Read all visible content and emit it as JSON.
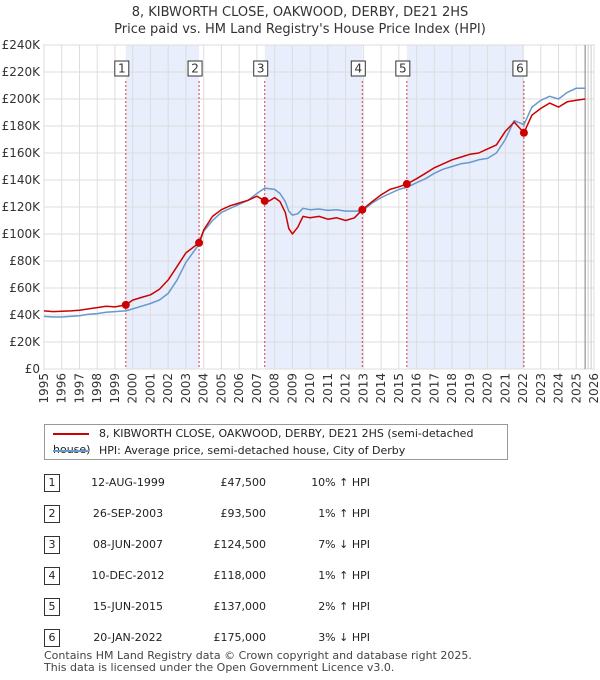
{
  "title": "8, KIBWORTH CLOSE, OAKWOOD, DERBY, DE21 2HS",
  "subtitle": "Price paid vs. HM Land Registry's House Price Index (HPI)",
  "colors": {
    "property_line": "#cc0000",
    "hpi_line": "#6699cc",
    "shade": "#e8eefb",
    "grid": "#dddddd",
    "marker_line": "#d04040"
  },
  "legend": {
    "property_label": "8, KIBWORTH CLOSE, OAKWOOD, DERBY, DE21 2HS (semi-detached house)",
    "hpi_label": "HPI: Average price, semi-detached house, City of Derby"
  },
  "transactions": [
    {
      "num": "1",
      "date": "12-AUG-1999",
      "price": "£47,500",
      "hpi": "10% ↑ HPI"
    },
    {
      "num": "2",
      "date": "26-SEP-2003",
      "price": "£93,500",
      "hpi": "1% ↑ HPI"
    },
    {
      "num": "3",
      "date": "08-JUN-2007",
      "price": "£124,500",
      "hpi": "7% ↓ HPI"
    },
    {
      "num": "4",
      "date": "10-DEC-2012",
      "price": "£118,000",
      "hpi": "1% ↑ HPI"
    },
    {
      "num": "5",
      "date": "15-JUN-2015",
      "price": "£137,000",
      "hpi": "2% ↑ HPI"
    },
    {
      "num": "6",
      "date": "20-JAN-2022",
      "price": "£175,000",
      "hpi": "3% ↓ HPI"
    }
  ],
  "footer": {
    "line1": "Contains HM Land Registry data © Crown copyright and database right 2025.",
    "line2": "This data is licensed under the Open Government Licence v3.0."
  },
  "chart_data": {
    "type": "line",
    "title": "8, KIBWORTH CLOSE, OAKWOOD, DERBY, DE21 2HS",
    "subtitle": "Price paid vs. HM Land Registry's House Price Index (HPI)",
    "xlabel": "",
    "ylabel": "",
    "xlim": [
      1995,
      2026
    ],
    "ylim": [
      0,
      240000
    ],
    "x_ticks": [
      1995,
      1996,
      1997,
      1998,
      1999,
      2000,
      2001,
      2002,
      2003,
      2004,
      2005,
      2006,
      2007,
      2008,
      2009,
      2010,
      2011,
      2012,
      2013,
      2014,
      2015,
      2016,
      2017,
      2018,
      2019,
      2020,
      2021,
      2022,
      2023,
      2024,
      2025,
      2026
    ],
    "y_ticks": [
      0,
      20000,
      40000,
      60000,
      80000,
      100000,
      120000,
      140000,
      160000,
      180000,
      200000,
      220000,
      240000
    ],
    "y_tick_labels": [
      "£0",
      "£20K",
      "£40K",
      "£60K",
      "£80K",
      "£100K",
      "£120K",
      "£140K",
      "£160K",
      "£180K",
      "£200K",
      "£220K",
      "£240K"
    ],
    "grid": true,
    "shaded_periods": [
      [
        1999.61,
        2003.74
      ],
      [
        2007.44,
        2012.94
      ],
      [
        2015.45,
        2022.05
      ]
    ],
    "sales": [
      {
        "label": "1",
        "x": 1999.61,
        "y": 47500
      },
      {
        "label": "2",
        "x": 2003.74,
        "y": 93500
      },
      {
        "label": "3",
        "x": 2007.44,
        "y": 124500
      },
      {
        "label": "4",
        "x": 2012.94,
        "y": 118000
      },
      {
        "label": "5",
        "x": 2015.45,
        "y": 137000
      },
      {
        "label": "6",
        "x": 2022.05,
        "y": 175000
      }
    ],
    "series": [
      {
        "name": "8, KIBWORTH CLOSE, OAKWOOD, DERBY, DE21 2HS (semi-detached house)",
        "color": "#cc0000",
        "x": [
          1995.0,
          1995.5,
          1996.0,
          1996.5,
          1997.0,
          1997.5,
          1998.0,
          1998.5,
          1999.0,
          1999.61,
          2000.0,
          2000.5,
          2001.0,
          2001.5,
          2002.0,
          2002.5,
          2003.0,
          2003.74,
          2004.0,
          2004.5,
          2005.0,
          2005.5,
          2006.0,
          2006.5,
          2007.0,
          2007.44,
          2007.7,
          2008.0,
          2008.3,
          2008.6,
          2008.8,
          2009.0,
          2009.3,
          2009.6,
          2010.0,
          2010.5,
          2011.0,
          2011.5,
          2012.0,
          2012.5,
          2012.94,
          2013.5,
          2014.0,
          2014.5,
          2015.0,
          2015.45,
          2016.0,
          2016.5,
          2017.0,
          2017.5,
          2018.0,
          2018.5,
          2019.0,
          2019.5,
          2020.0,
          2020.5,
          2021.0,
          2021.5,
          2022.05,
          2022.5,
          2023.0,
          2023.5,
          2024.0,
          2024.5,
          2025.0,
          2025.5
        ],
        "y": [
          43000,
          42500,
          42800,
          43000,
          43500,
          44500,
          45500,
          46500,
          46000,
          47500,
          51000,
          53000,
          55000,
          59000,
          66000,
          76000,
          86000,
          93500,
          103000,
          113000,
          118000,
          121000,
          123000,
          125000,
          128000,
          124500,
          124500,
          127000,
          124000,
          116000,
          104000,
          100000,
          105000,
          113000,
          112000,
          113000,
          111000,
          112000,
          110000,
          112000,
          118000,
          124000,
          129000,
          133000,
          135000,
          137000,
          141000,
          145000,
          149000,
          152000,
          155000,
          157000,
          159000,
          160000,
          163000,
          166000,
          176000,
          183000,
          175000,
          188000,
          193000,
          197000,
          194000,
          198000,
          199000,
          200000
        ]
      },
      {
        "name": "HPI: Average price, semi-detached house, City of Derby",
        "color": "#6699cc",
        "x": [
          1995.0,
          1995.5,
          1996.0,
          1996.5,
          1997.0,
          1997.5,
          1998.0,
          1998.5,
          1999.0,
          1999.61,
          2000.0,
          2000.5,
          2001.0,
          2001.5,
          2002.0,
          2002.5,
          2003.0,
          2003.74,
          2004.0,
          2004.5,
          2005.0,
          2005.5,
          2006.0,
          2006.5,
          2007.0,
          2007.44,
          2007.7,
          2008.0,
          2008.3,
          2008.6,
          2008.8,
          2009.0,
          2009.3,
          2009.6,
          2010.0,
          2010.5,
          2011.0,
          2011.5,
          2012.0,
          2012.5,
          2012.94,
          2013.5,
          2014.0,
          2014.5,
          2015.0,
          2015.45,
          2016.0,
          2016.5,
          2017.0,
          2017.5,
          2018.0,
          2018.5,
          2019.0,
          2019.5,
          2020.0,
          2020.5,
          2021.0,
          2021.5,
          2022.05,
          2022.5,
          2023.0,
          2023.5,
          2024.0,
          2024.5,
          2025.0,
          2025.5
        ],
        "y": [
          39000,
          38500,
          38500,
          39000,
          39500,
          40500,
          41000,
          42000,
          42500,
          43000,
          44500,
          46500,
          48500,
          51000,
          56000,
          66000,
          79000,
          92500,
          102000,
          110000,
          116000,
          119000,
          122000,
          125000,
          130000,
          134000,
          133500,
          133000,
          130000,
          124000,
          117000,
          114000,
          115000,
          119000,
          118000,
          118500,
          117500,
          118000,
          117000,
          117000,
          117000,
          123000,
          127000,
          130000,
          133000,
          134500,
          138000,
          141000,
          145000,
          148000,
          150000,
          152000,
          153000,
          155000,
          156000,
          160000,
          170000,
          184000,
          181000,
          194000,
          199000,
          202000,
          200000,
          205000,
          208000,
          208000
        ]
      }
    ]
  }
}
